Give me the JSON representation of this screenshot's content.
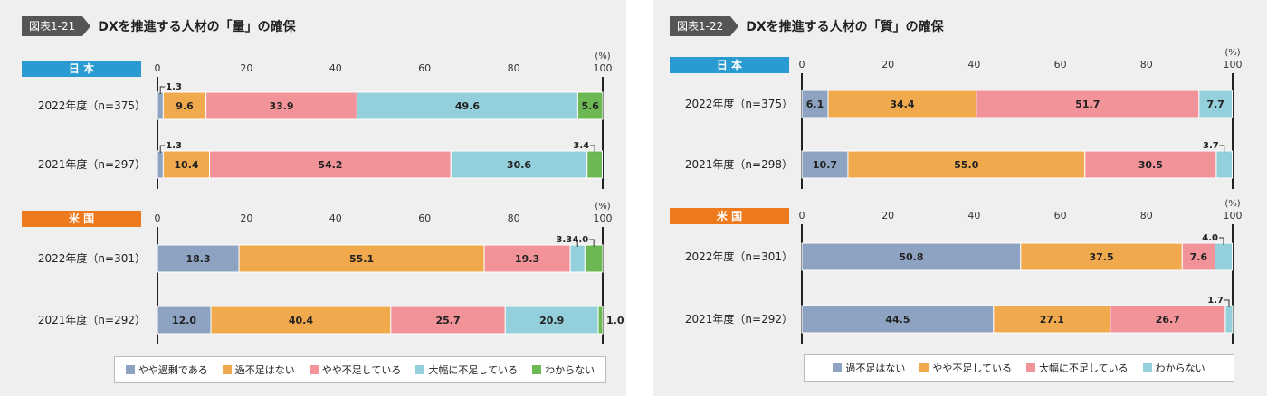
{
  "colors": {
    "jp_header": "#2a9bd0",
    "us_header": "#ee7a1e",
    "blue_gray": "#8ea3c2",
    "orange": "#f0a94d",
    "pink": "#f2939a",
    "light_blue": "#93d0db",
    "green": "#6cb954"
  },
  "chart_data": [
    {
      "type": "bar",
      "stacked": true,
      "orientation": "horizontal",
      "fig_label": "図表1-21",
      "title": "DXを推進する人材の「量」の確保",
      "unit": "(%)",
      "xlim": [
        0,
        100
      ],
      "ticks": [
        "0",
        "20",
        "40",
        "60",
        "80",
        "100"
      ],
      "legend_position": "bottom",
      "legend": [
        "やや過剰である",
        "過不足はない",
        "やや不足している",
        "大幅に不足している",
        "わからない"
      ],
      "series_colors": [
        "#8ea3c2",
        "#f0a94d",
        "#f2939a",
        "#93d0db",
        "#6cb954"
      ],
      "groups": [
        {
          "header": "日 本",
          "header_color": "#2a9bd0",
          "rows": [
            {
              "label": "2022年度（n=375）",
              "values": [
                1.3,
                9.6,
                33.9,
                49.6,
                5.6
              ],
              "labels": [
                "1.3",
                "9.6",
                "33.9",
                "49.6",
                "5.6"
              ]
            },
            {
              "label": "2021年度（n=297）",
              "values": [
                1.3,
                10.4,
                54.2,
                30.6,
                3.4
              ],
              "labels": [
                "1.3",
                "10.4",
                "54.2",
                "30.6",
                "3.4"
              ]
            }
          ]
        },
        {
          "header": "米 国",
          "header_color": "#ee7a1e",
          "rows": [
            {
              "label": "2022年度（n=301）",
              "values": [
                18.3,
                55.1,
                19.3,
                3.3,
                4.0
              ],
              "labels": [
                "18.3",
                "55.1",
                "19.3",
                "3.3",
                "4.0"
              ]
            },
            {
              "label": "2021年度（n=292）",
              "values": [
                12.0,
                40.4,
                25.7,
                20.9,
                1.0
              ],
              "labels": [
                "12.0",
                "40.4",
                "25.7",
                "20.9",
                "1.0"
              ]
            }
          ]
        }
      ]
    },
    {
      "type": "bar",
      "stacked": true,
      "orientation": "horizontal",
      "fig_label": "図表1-22",
      "title": "DXを推進する人材の「質」の確保",
      "unit": "(%)",
      "xlim": [
        0,
        100
      ],
      "ticks": [
        "0",
        "20",
        "40",
        "60",
        "80",
        "100"
      ],
      "legend_position": "bottom",
      "legend": [
        "過不足はない",
        "やや不足している",
        "大幅に不足している",
        "わからない"
      ],
      "series_colors": [
        "#8ea3c2",
        "#f0a94d",
        "#f2939a",
        "#93d0db"
      ],
      "groups": [
        {
          "header": "日 本",
          "header_color": "#2a9bd0",
          "rows": [
            {
              "label": "2022年度（n=375）",
              "values": [
                6.1,
                34.4,
                51.7,
                7.7
              ],
              "labels": [
                "6.1",
                "34.4",
                "51.7",
                "7.7"
              ]
            },
            {
              "label": "2021年度（n=298）",
              "values": [
                10.7,
                55.0,
                30.5,
                3.7
              ],
              "labels": [
                "10.7",
                "55.0",
                "30.5",
                "3.7"
              ]
            }
          ]
        },
        {
          "header": "米 国",
          "header_color": "#ee7a1e",
          "rows": [
            {
              "label": "2022年度（n=301）",
              "values": [
                50.8,
                37.5,
                7.6,
                4.0
              ],
              "labels": [
                "50.8",
                "37.5",
                "7.6",
                "4.0"
              ]
            },
            {
              "label": "2021年度（n=292）",
              "values": [
                44.5,
                27.1,
                26.7,
                1.7
              ],
              "labels": [
                "44.5",
                "27.1",
                "26.7",
                "1.7"
              ]
            }
          ]
        }
      ]
    }
  ]
}
